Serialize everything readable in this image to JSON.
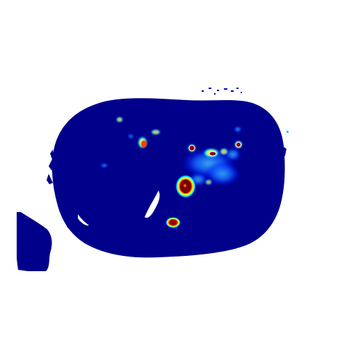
{
  "image": {
    "kind": "heatmap-overlay-axial-slice",
    "background_color": "#ffffff",
    "colormap": "jet",
    "colormap_stops": [
      "#00008b",
      "#0000ff",
      "#00ffff",
      "#ffff00",
      "#ff0000",
      "#8b0000"
    ],
    "body_base_color": "#00008b",
    "hotspot_label": "red-yellow-hotspot",
    "has_text": false
  }
}
